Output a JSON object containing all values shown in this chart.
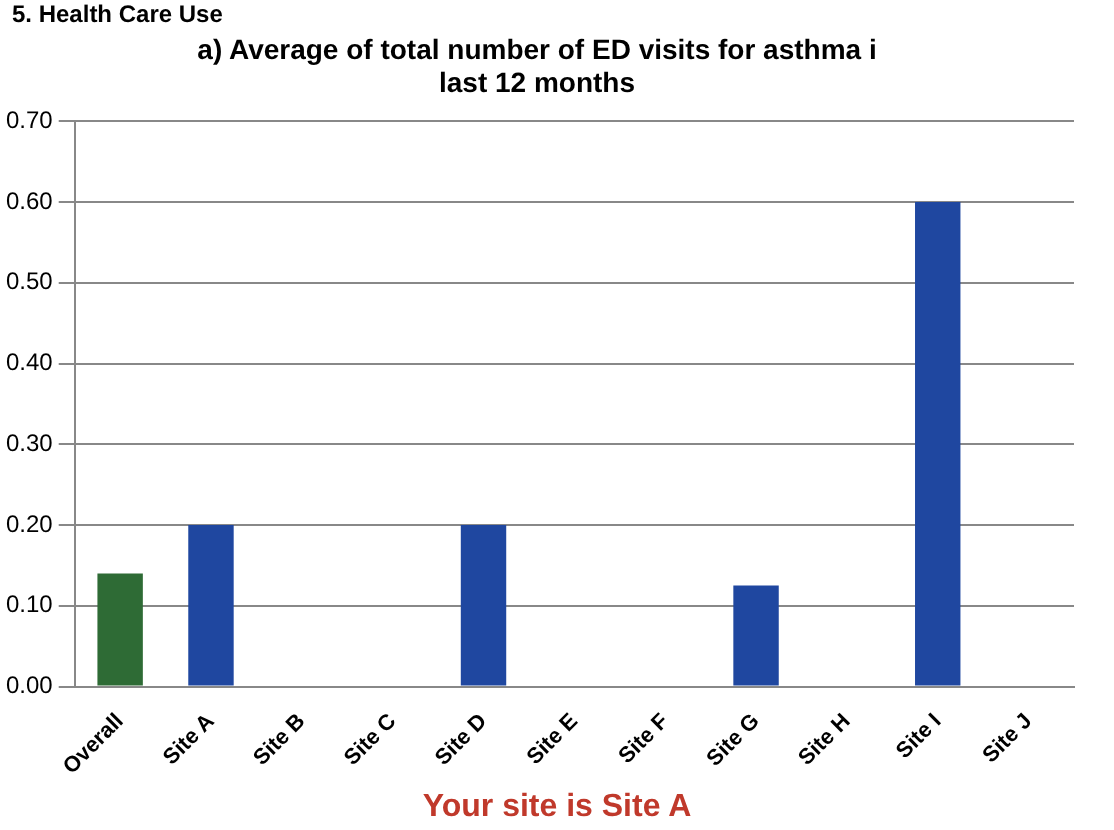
{
  "chart_data": {
    "type": "bar",
    "title": "a) Average of total number of ED visits for asthma i\nlast 12 months",
    "categories": [
      "Overall",
      "Site A",
      "Site B",
      "Site C",
      "Site D",
      "Site E",
      "Site F",
      "Site G",
      "Site H",
      "Site I",
      "Site J"
    ],
    "values": [
      0.14,
      0.2,
      0,
      0,
      0.2,
      0,
      0,
      0.125,
      0,
      0.6,
      0
    ],
    "colors": [
      "#2e6b35",
      "#1f47a0",
      "#1f47a0",
      "#1f47a0",
      "#1f47a0",
      "#1f47a0",
      "#1f47a0",
      "#1f47a0",
      "#1f47a0",
      "#1f47a0",
      "#1f47a0"
    ],
    "ylim": [
      0,
      0.7
    ],
    "yticks": [
      {
        "value": 0,
        "label": "0.00"
      },
      {
        "value": 0.1,
        "label": "0.10"
      },
      {
        "value": 0.2,
        "label": "0.20"
      },
      {
        "value": 0.3,
        "label": "0.30"
      },
      {
        "value": 0.4,
        "label": "0.40"
      },
      {
        "value": 0.5,
        "label": "0.50"
      },
      {
        "value": 0.6,
        "label": "0.60"
      },
      {
        "value": 0.7,
        "label": "0.70"
      }
    ],
    "grid": "y",
    "legend": false,
    "annotations": [
      "5. Health Care Use",
      "Your site is Site A"
    ]
  }
}
